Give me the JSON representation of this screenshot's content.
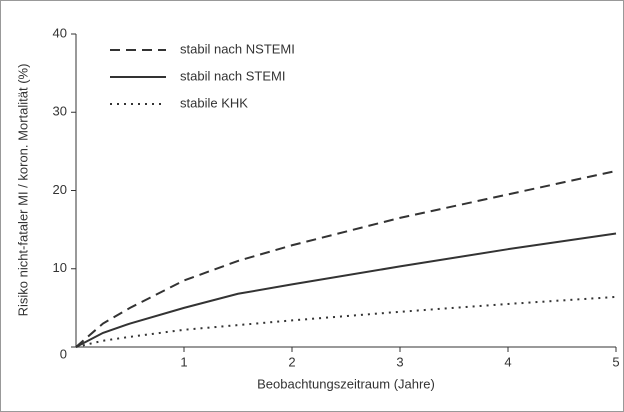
{
  "chart_data": {
    "type": "line",
    "x_label": "Beobachtungszeitraum (Jahre)",
    "y_label": "Risiko nicht-fataler MI / koron. Mortalität (%)",
    "x": [
      0,
      0.25,
      0.5,
      1,
      1.5,
      2,
      3,
      4,
      5
    ],
    "series": [
      {
        "name": "stabil nach NSTEMI",
        "color": "#333333",
        "dash": "dashed",
        "values": [
          0,
          3,
          5,
          8.5,
          11,
          13,
          16.5,
          19.5,
          22.5
        ]
      },
      {
        "name": "stabil nach STEMI",
        "color": "#333333",
        "dash": "solid",
        "values": [
          0,
          1.8,
          3,
          5,
          6.8,
          8,
          10.3,
          12.5,
          14.5
        ]
      },
      {
        "name": "stabile KHK",
        "color": "#333333",
        "dash": "dotted",
        "values": [
          0,
          0.8,
          1.3,
          2.2,
          2.8,
          3.4,
          4.5,
          5.5,
          6.4
        ]
      }
    ],
    "xlim": [
      0,
      5
    ],
    "xticks": [
      1,
      2,
      3,
      4,
      5
    ],
    "ylim": [
      0,
      40
    ],
    "yticks": [
      0,
      10,
      20,
      30,
      40
    ],
    "legend": "top-left"
  }
}
